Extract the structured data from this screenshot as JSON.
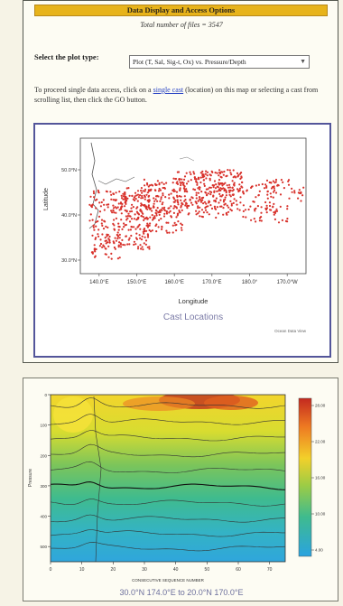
{
  "header": {
    "title": "Data Display and Access Options"
  },
  "summary": {
    "total_files_label": "Total number of files = 3547"
  },
  "plot_type": {
    "label": "Select the plot type:",
    "selected": "Plot (T, Sal, Sig-t, Ox) vs. Pressure/Depth"
  },
  "instructions": {
    "before": "To proceed single data access, click on a ",
    "link": "single cast",
    "after": " (location) on this map or selecting a cast from scrolling list, then click the GO button."
  },
  "map": {
    "y_axis_label": "Latitude",
    "x_axis_label": "Longitude",
    "caption": "Cast Locations",
    "credit": "Ocean Data View",
    "chart_data": {
      "type": "scatter",
      "x_ticks": [
        "140.0°E",
        "150.0°E",
        "160.0°E",
        "170.0°E",
        "180.0°",
        "170.0°W"
      ],
      "y_ticks": [
        "50.0°N",
        "40.0°N",
        "30.0°N"
      ],
      "xlim": [
        135,
        195
      ],
      "ylim": [
        27,
        57
      ]
    }
  },
  "section": {
    "y_axis_label": "Pressure",
    "x_axis_label": "CONSECUTIVE SEQUENCE NUMBER",
    "caption": "30.0°N 174.0°E to 20.0°N 170.0°E",
    "chart_data": {
      "type": "heatmap",
      "x_ticks": [
        "0",
        "10",
        "20",
        "30",
        "40",
        "50",
        "60",
        "70"
      ],
      "y_ticks": [
        "0",
        "100",
        "200",
        "300",
        "400",
        "500"
      ],
      "colorbar_ticks": [
        "28.00",
        "22.00",
        "16.00",
        "10.00",
        "4.00"
      ],
      "xlim": [
        0,
        75
      ],
      "ylim": [
        0,
        550
      ]
    }
  },
  "colors": {
    "header": "#e7b31a",
    "cast": "#d8312b",
    "frame": "#53559a"
  }
}
